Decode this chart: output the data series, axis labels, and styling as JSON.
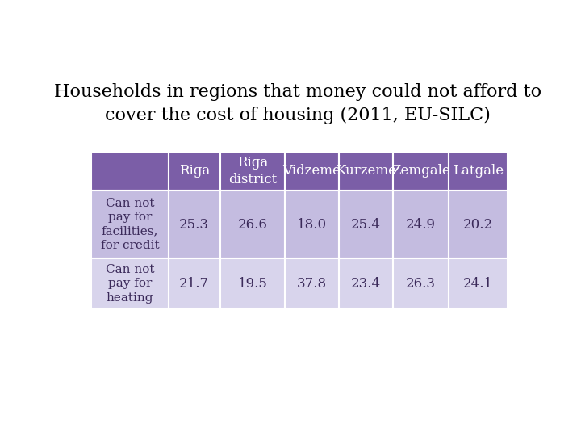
{
  "title_line1": "Households in regions that money could not afford to",
  "title_line2": "cover the cost of housing (2011, EU-SILC)",
  "title_fontsize": 16,
  "header_bg": "#7B5EA7",
  "header_text_color": "#FFFFFF",
  "row1_bg": "#C4BCE0",
  "row2_bg": "#D8D4EC",
  "col_headers": [
    "",
    "Riga",
    "Riga\ndistrict",
    "Vidzeme",
    "Kurzeme",
    "Zemgale",
    "Latgale"
  ],
  "row_labels": [
    "Can not\npay for\nfacilities,\nfor credit",
    "Can not\npay for\nheating"
  ],
  "data": [
    [
      25.3,
      26.6,
      18.0,
      25.4,
      24.9,
      20.2
    ],
    [
      21.7,
      19.5,
      37.8,
      23.4,
      26.3,
      24.1
    ]
  ],
  "cell_fontsize": 12,
  "header_fontsize": 12,
  "row_label_fontsize": 11,
  "background_color": "#FFFFFF"
}
